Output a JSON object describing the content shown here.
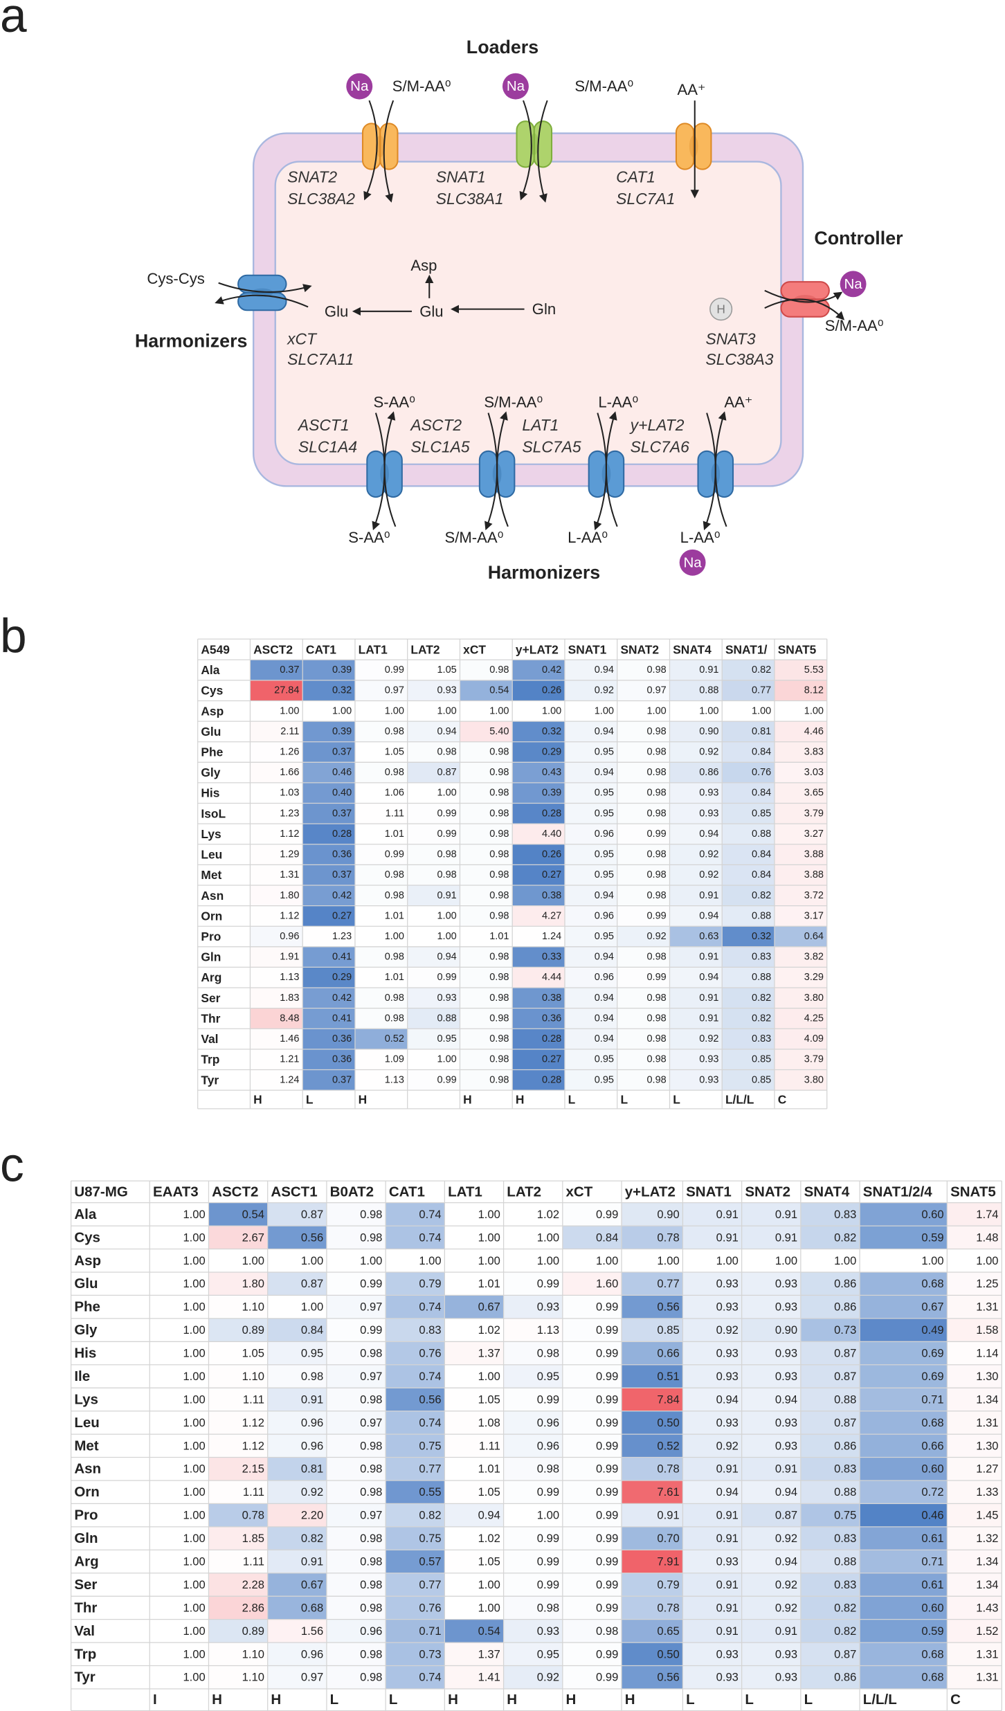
{
  "panel_a": {
    "label": "a",
    "headings": [
      "Loaders",
      "Controller",
      "Harmonizers",
      "Harmonizers"
    ],
    "transporters": [
      {
        "name": "SNAT2",
        "gene": "SLC38A2"
      },
      {
        "name": "SNAT1",
        "gene": "SLC38A1"
      },
      {
        "name": "CAT1",
        "gene": "SLC7A1"
      },
      {
        "name": "SNAT3",
        "gene": "SLC38A3"
      },
      {
        "name": "xCT",
        "gene": "SLC7A11"
      },
      {
        "name": "ASCT1",
        "gene": "SLC1A4"
      },
      {
        "name": "ASCT2",
        "gene": "SLC1A5"
      },
      {
        "name": "LAT1",
        "gene": "SLC7A5"
      },
      {
        "name": "y+LAT2",
        "gene": "SLC7A6"
      }
    ],
    "substrates": [
      "S/M-AA⁰",
      "S/M-AA⁰",
      "AA⁺",
      "S/M-AA⁰",
      "Cys-Cys",
      "Glu",
      "S-AA⁰",
      "S/M-AA⁰",
      "L-AA⁰",
      "AA⁺",
      "S-AA⁰",
      "S/M-AA⁰",
      "L-AA⁰",
      "L-AA⁰"
    ],
    "ions": [
      "Na",
      "Na",
      "Na",
      "H",
      "Na"
    ],
    "metabolites": [
      "Asp",
      "Glu",
      "Gln"
    ]
  },
  "panel_b": {
    "label": "b",
    "table": {
      "header": [
        "A549",
        "ASCT2",
        "CAT1",
        "LAT1",
        "LAT2",
        "xCT",
        "y+LAT2",
        "SNAT1",
        "SNAT2",
        "SNAT4",
        "SNAT1/",
        "SNAT5"
      ],
      "rows": [
        [
          "Ala",
          "0.37",
          "0.39",
          "0.99",
          "1.05",
          "0.98",
          "0.42",
          "0.94",
          "0.98",
          "0.91",
          "0.82",
          "5.53"
        ],
        [
          "Cys",
          "27.84",
          "0.32",
          "0.97",
          "0.93",
          "0.54",
          "0.26",
          "0.92",
          "0.97",
          "0.88",
          "0.77",
          "8.12"
        ],
        [
          "Asp",
          "1.00",
          "1.00",
          "1.00",
          "1.00",
          "1.00",
          "1.00",
          "1.00",
          "1.00",
          "1.00",
          "1.00",
          "1.00"
        ],
        [
          "Glu",
          "2.11",
          "0.39",
          "0.98",
          "0.94",
          "5.40",
          "0.32",
          "0.94",
          "0.98",
          "0.90",
          "0.81",
          "4.46"
        ],
        [
          "Phe",
          "1.26",
          "0.37",
          "1.05",
          "0.98",
          "0.98",
          "0.29",
          "0.95",
          "0.98",
          "0.92",
          "0.84",
          "3.83"
        ],
        [
          "Gly",
          "1.66",
          "0.46",
          "0.98",
          "0.87",
          "0.98",
          "0.43",
          "0.94",
          "0.98",
          "0.86",
          "0.76",
          "3.03"
        ],
        [
          "His",
          "1.03",
          "0.40",
          "1.06",
          "1.00",
          "0.98",
          "0.39",
          "0.95",
          "0.98",
          "0.93",
          "0.84",
          "3.65"
        ],
        [
          "IsoL",
          "1.23",
          "0.37",
          "1.11",
          "0.99",
          "0.98",
          "0.28",
          "0.95",
          "0.98",
          "0.93",
          "0.85",
          "3.79"
        ],
        [
          "Lys",
          "1.12",
          "0.28",
          "1.01",
          "0.99",
          "0.98",
          "4.40",
          "0.96",
          "0.99",
          "0.94",
          "0.88",
          "3.27"
        ],
        [
          "Leu",
          "1.29",
          "0.36",
          "0.99",
          "0.98",
          "0.98",
          "0.26",
          "0.95",
          "0.98",
          "0.92",
          "0.84",
          "3.88"
        ],
        [
          "Met",
          "1.31",
          "0.37",
          "0.98",
          "0.98",
          "0.98",
          "0.27",
          "0.95",
          "0.98",
          "0.92",
          "0.84",
          "3.88"
        ],
        [
          "Asn",
          "1.80",
          "0.42",
          "0.98",
          "0.91",
          "0.98",
          "0.38",
          "0.94",
          "0.98",
          "0.91",
          "0.82",
          "3.72"
        ],
        [
          "Orn",
          "1.12",
          "0.27",
          "1.01",
          "1.00",
          "0.98",
          "4.27",
          "0.96",
          "0.99",
          "0.94",
          "0.88",
          "3.17"
        ],
        [
          "Pro",
          "0.96",
          "1.23",
          "1.00",
          "1.00",
          "1.01",
          "1.24",
          "0.95",
          "0.92",
          "0.63",
          "0.32",
          "0.64"
        ],
        [
          "Gln",
          "1.91",
          "0.41",
          "0.98",
          "0.94",
          "0.98",
          "0.33",
          "0.94",
          "0.98",
          "0.91",
          "0.83",
          "3.82"
        ],
        [
          "Arg",
          "1.13",
          "0.29",
          "1.01",
          "0.99",
          "0.98",
          "4.44",
          "0.96",
          "0.99",
          "0.94",
          "0.88",
          "3.29"
        ],
        [
          "Ser",
          "1.83",
          "0.42",
          "0.98",
          "0.93",
          "0.98",
          "0.38",
          "0.94",
          "0.98",
          "0.91",
          "0.82",
          "3.80"
        ],
        [
          "Thr",
          "8.48",
          "0.41",
          "0.98",
          "0.88",
          "0.98",
          "0.36",
          "0.94",
          "0.98",
          "0.91",
          "0.82",
          "4.25"
        ],
        [
          "Val",
          "1.46",
          "0.36",
          "0.52",
          "0.95",
          "0.98",
          "0.28",
          "0.94",
          "0.98",
          "0.92",
          "0.83",
          "4.09"
        ],
        [
          "Trp",
          "1.21",
          "0.36",
          "1.09",
          "1.00",
          "0.98",
          "0.27",
          "0.95",
          "0.98",
          "0.93",
          "0.85",
          "3.79"
        ],
        [
          "Tyr",
          "1.24",
          "0.37",
          "1.13",
          "0.99",
          "0.98",
          "0.28",
          "0.95",
          "0.98",
          "0.93",
          "0.85",
          "3.80"
        ]
      ],
      "footer": [
        null,
        "H",
        "L",
        "H",
        null,
        "H",
        "H",
        "L",
        "L",
        "L",
        "L/L/L",
        "C"
      ]
    }
  },
  "panel_c": {
    "label": "c",
    "table": {
      "header": [
        "U87-MG",
        "EAAT3",
        "ASCT2",
        "ASCT1",
        "B0AT2",
        "CAT1",
        "LAT1",
        "LAT2",
        "xCT",
        "y+LAT2",
        "SNAT1",
        "SNAT2",
        "SNAT4",
        "SNAT1/2/4",
        "SNAT5"
      ],
      "rows": [
        [
          "Ala",
          "1.00",
          "0.54",
          "0.87",
          "0.98",
          "0.74",
          "1.00",
          "1.02",
          "0.99",
          "0.90",
          "0.91",
          "0.91",
          "0.83",
          "0.60",
          "1.74"
        ],
        [
          "Cys",
          "1.00",
          "2.67",
          "0.56",
          "0.98",
          "0.74",
          "1.00",
          "1.00",
          "0.84",
          "0.78",
          "0.91",
          "0.91",
          "0.82",
          "0.59",
          "1.48"
        ],
        [
          "Asp",
          "1.00",
          "1.00",
          "1.00",
          "1.00",
          "1.00",
          "1.00",
          "1.00",
          "1.00",
          "1.00",
          "1.00",
          "1.00",
          "1.00",
          "1.00",
          "1.00"
        ],
        [
          "Glu",
          "1.00",
          "1.80",
          "0.87",
          "0.99",
          "0.79",
          "1.01",
          "0.99",
          "1.60",
          "0.77",
          "0.93",
          "0.93",
          "0.86",
          "0.68",
          "1.25"
        ],
        [
          "Phe",
          "1.00",
          "1.10",
          "1.00",
          "0.97",
          "0.74",
          "0.67",
          "0.93",
          "0.99",
          "0.56",
          "0.93",
          "0.93",
          "0.86",
          "0.67",
          "1.31"
        ],
        [
          "Gly",
          "1.00",
          "0.89",
          "0.84",
          "0.99",
          "0.83",
          "1.02",
          "1.13",
          "0.99",
          "0.85",
          "0.92",
          "0.90",
          "0.73",
          "0.49",
          "1.58"
        ],
        [
          "His",
          "1.00",
          "1.05",
          "0.95",
          "0.98",
          "0.76",
          "1.37",
          "0.98",
          "0.99",
          "0.66",
          "0.93",
          "0.93",
          "0.87",
          "0.69",
          "1.14"
        ],
        [
          "Ile",
          "1.00",
          "1.10",
          "0.98",
          "0.97",
          "0.74",
          "1.00",
          "0.95",
          "0.99",
          "0.51",
          "0.93",
          "0.93",
          "0.87",
          "0.69",
          "1.30"
        ],
        [
          "Lys",
          "1.00",
          "1.11",
          "0.91",
          "0.98",
          "0.56",
          "1.05",
          "0.99",
          "0.99",
          "7.84",
          "0.94",
          "0.94",
          "0.88",
          "0.71",
          "1.34"
        ],
        [
          "Leu",
          "1.00",
          "1.12",
          "0.96",
          "0.97",
          "0.74",
          "1.08",
          "0.96",
          "0.99",
          "0.50",
          "0.93",
          "0.93",
          "0.87",
          "0.68",
          "1.31"
        ],
        [
          "Met",
          "1.00",
          "1.12",
          "0.96",
          "0.98",
          "0.75",
          "1.11",
          "0.96",
          "0.99",
          "0.52",
          "0.92",
          "0.93",
          "0.86",
          "0.66",
          "1.30"
        ],
        [
          "Asn",
          "1.00",
          "2.15",
          "0.81",
          "0.98",
          "0.77",
          "1.01",
          "0.98",
          "0.99",
          "0.78",
          "0.91",
          "0.91",
          "0.83",
          "0.60",
          "1.27"
        ],
        [
          "Orn",
          "1.00",
          "1.11",
          "0.92",
          "0.98",
          "0.55",
          "1.05",
          "0.99",
          "0.99",
          "7.61",
          "0.94",
          "0.94",
          "0.88",
          "0.72",
          "1.33"
        ],
        [
          "Pro",
          "1.00",
          "0.78",
          "2.20",
          "0.97",
          "0.82",
          "0.94",
          "1.00",
          "0.99",
          "0.91",
          "0.91",
          "0.87",
          "0.75",
          "0.46",
          "1.45"
        ],
        [
          "Gln",
          "1.00",
          "1.85",
          "0.82",
          "0.98",
          "0.75",
          "1.02",
          "0.99",
          "0.99",
          "0.70",
          "0.91",
          "0.92",
          "0.83",
          "0.61",
          "1.32"
        ],
        [
          "Arg",
          "1.00",
          "1.11",
          "0.91",
          "0.98",
          "0.57",
          "1.05",
          "0.99",
          "0.99",
          "7.91",
          "0.93",
          "0.94",
          "0.88",
          "0.71",
          "1.34"
        ],
        [
          "Ser",
          "1.00",
          "2.28",
          "0.67",
          "0.98",
          "0.77",
          "1.00",
          "0.99",
          "0.99",
          "0.79",
          "0.91",
          "0.92",
          "0.83",
          "0.61",
          "1.34"
        ],
        [
          "Thr",
          "1.00",
          "2.86",
          "0.68",
          "0.98",
          "0.76",
          "1.00",
          "0.98",
          "0.99",
          "0.78",
          "0.91",
          "0.92",
          "0.82",
          "0.60",
          "1.43"
        ],
        [
          "Val",
          "1.00",
          "0.89",
          "1.56",
          "0.96",
          "0.71",
          "0.54",
          "0.93",
          "0.98",
          "0.65",
          "0.91",
          "0.91",
          "0.82",
          "0.59",
          "1.52"
        ],
        [
          "Trp",
          "1.00",
          "1.10",
          "0.96",
          "0.98",
          "0.73",
          "1.37",
          "0.95",
          "0.99",
          "0.50",
          "0.93",
          "0.93",
          "0.87",
          "0.68",
          "1.31"
        ],
        [
          "Tyr",
          "1.00",
          "1.10",
          "0.97",
          "0.98",
          "0.74",
          "1.41",
          "0.92",
          "0.99",
          "0.56",
          "0.93",
          "0.93",
          "0.86",
          "0.68",
          "1.31"
        ]
      ],
      "footer": [
        null,
        "I",
        "H",
        "H",
        "L",
        "L",
        "H",
        "H",
        "H",
        "H",
        "L",
        "L",
        "L",
        "L/L/L",
        "C"
      ]
    }
  }
}
